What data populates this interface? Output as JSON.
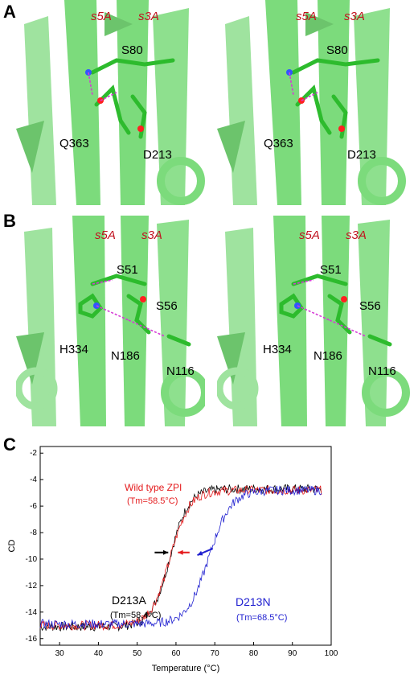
{
  "panels": {
    "A": {
      "letter": "A",
      "strand_labels": [
        "s5A",
        "s3A"
      ],
      "residues": [
        "S80",
        "Q363",
        "D213"
      ]
    },
    "B": {
      "letter": "B",
      "strand_labels": [
        "s5A",
        "s3A"
      ],
      "residues": [
        "S51",
        "S56",
        "H334",
        "N186",
        "N116"
      ]
    },
    "C": {
      "letter": "C"
    }
  },
  "chart_data": {
    "type": "line",
    "xlabel": "Temperature (°C)",
    "ylabel": "CD",
    "xlim": [
      25,
      100
    ],
    "ylim": [
      -16.5,
      -1.5
    ],
    "xticks": [
      30,
      40,
      50,
      60,
      70,
      80,
      90,
      100
    ],
    "yticks": [
      -2,
      -4,
      -6,
      -8,
      -10,
      -12,
      -14,
      -16
    ],
    "series": [
      {
        "name": "D213A",
        "annotation": "(Tm=58.4°C)",
        "color": "#000000",
        "tm": 58.4,
        "low": -15.1,
        "high": -4.7,
        "width": 2.4
      },
      {
        "name": "Wild type ZPI",
        "annotation": "(Tm=58.5°C)",
        "color": "#e41a1c",
        "tm": 58.5,
        "low": -15.0,
        "high": -4.8,
        "width": 2.5
      },
      {
        "name": "D213N",
        "annotation": "(Tm=68.5°C)",
        "color": "#1f1fd0",
        "tm": 68.5,
        "low": -14.9,
        "high": -4.8,
        "width": 2.8
      }
    ]
  }
}
